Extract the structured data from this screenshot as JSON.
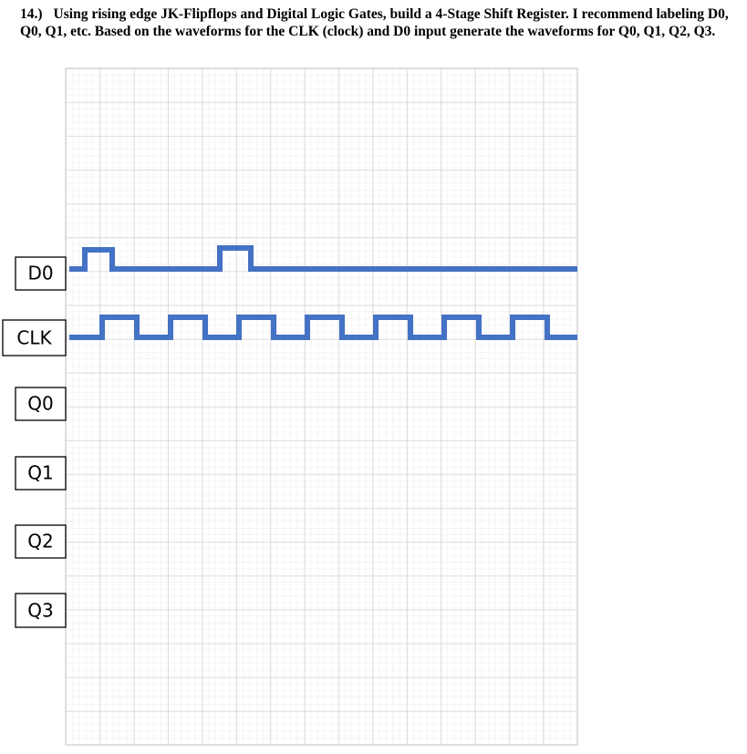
{
  "question": {
    "number": "14.)",
    "text": "Using rising edge JK-Flipflops and Digital Logic Gates, build a 4-Stage Shift Register. I recommend labeling D0, Q0, Q1, etc. Based on the waveforms for the CLK (clock) and D0 input generate the waveforms for Q0, Q1, Q2, Q3."
  },
  "signals": [
    "D0",
    "CLK",
    "Q0",
    "Q1",
    "Q2",
    "Q3"
  ]
}
